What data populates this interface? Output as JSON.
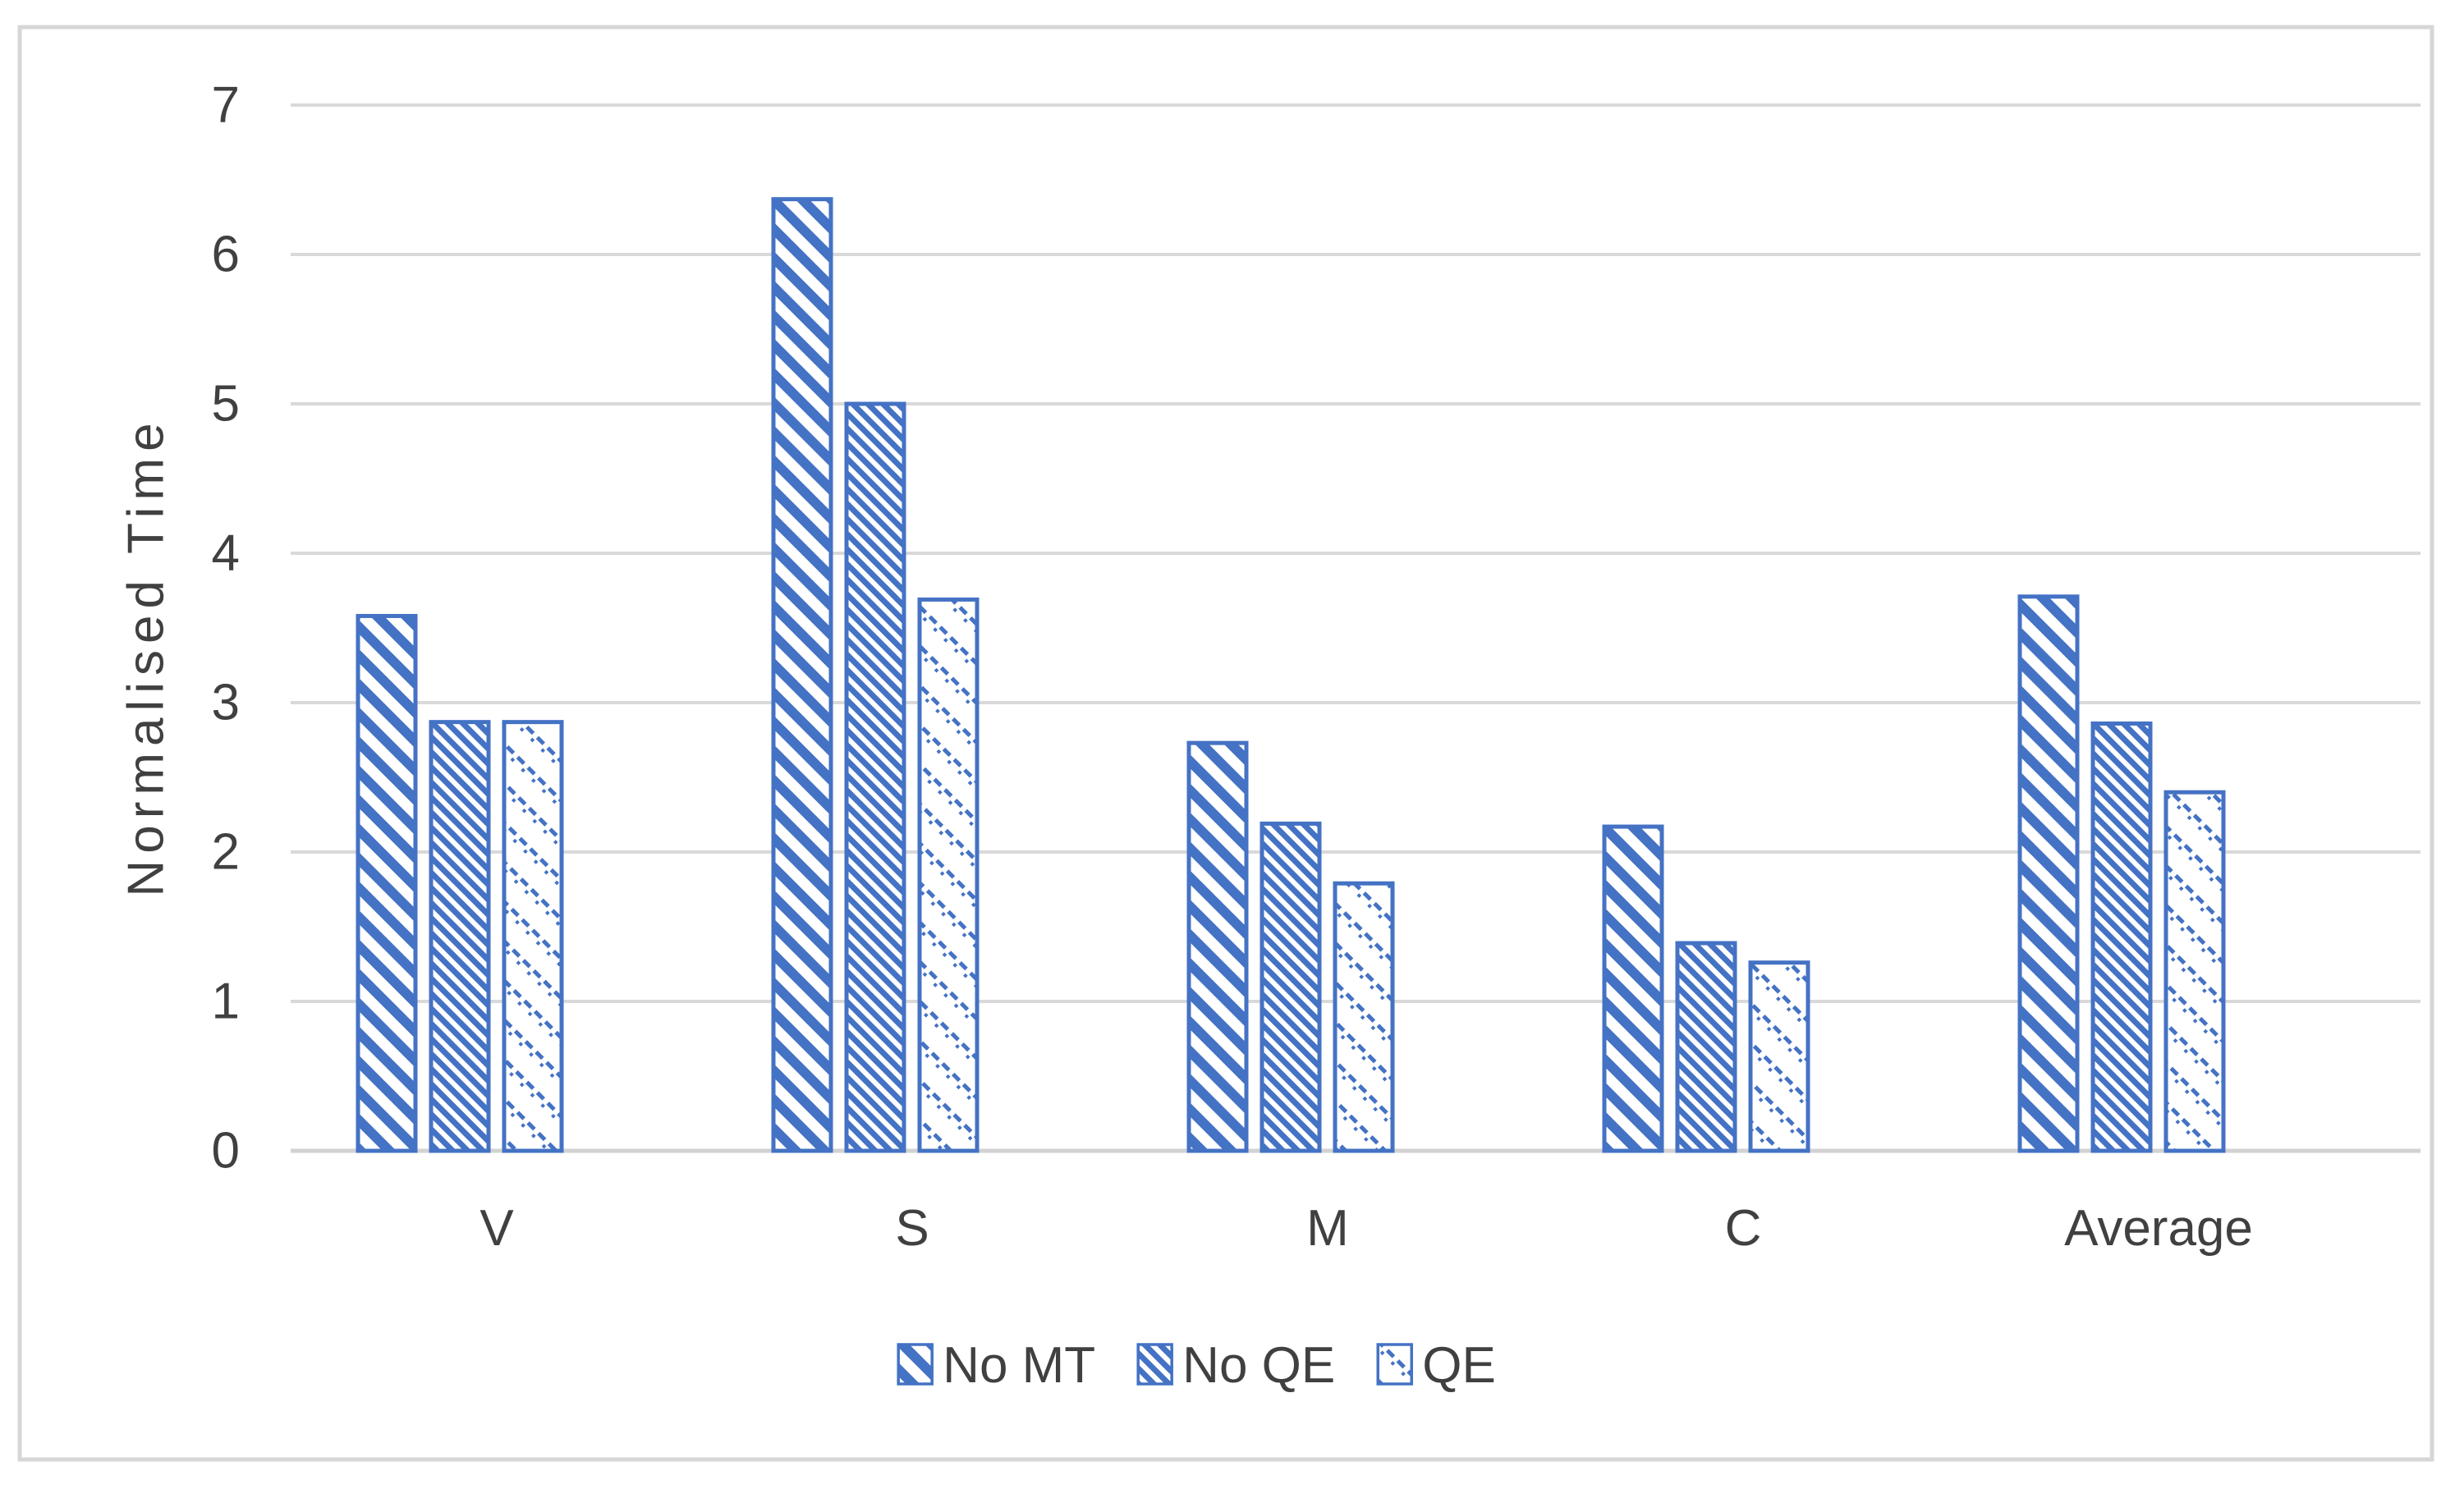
{
  "figure": {
    "background": "#FFFFFF",
    "border_color": "#D6D6D6"
  },
  "chart_data": {
    "type": "bar",
    "title": "",
    "xlabel": "",
    "ylabel": "Normalised Time",
    "categories": [
      "V",
      "S",
      "M",
      "C",
      "Average"
    ],
    "series": [
      {
        "name": "No MT",
        "pattern": "wide-downward-diagonal",
        "values": [
          3.58,
          6.37,
          2.73,
          2.17,
          3.71
        ]
      },
      {
        "name": "No QE",
        "pattern": "dense-downward-diagonal",
        "values": [
          2.87,
          5.0,
          2.19,
          1.39,
          2.86
        ]
      },
      {
        "name": "QE",
        "pattern": "dashed-downward-diagonal",
        "values": [
          2.87,
          3.69,
          1.79,
          1.26,
          2.4
        ]
      }
    ],
    "ylim": [
      0,
      7
    ],
    "yticks": [
      0,
      1,
      2,
      3,
      4,
      5,
      6,
      7
    ],
    "grid": true,
    "legend_position": "bottom",
    "accent_color": "#4472C4",
    "gridline_color": "#D9D9D9",
    "axis_line_color": "#D2D2D2",
    "text_color": "#404040"
  }
}
